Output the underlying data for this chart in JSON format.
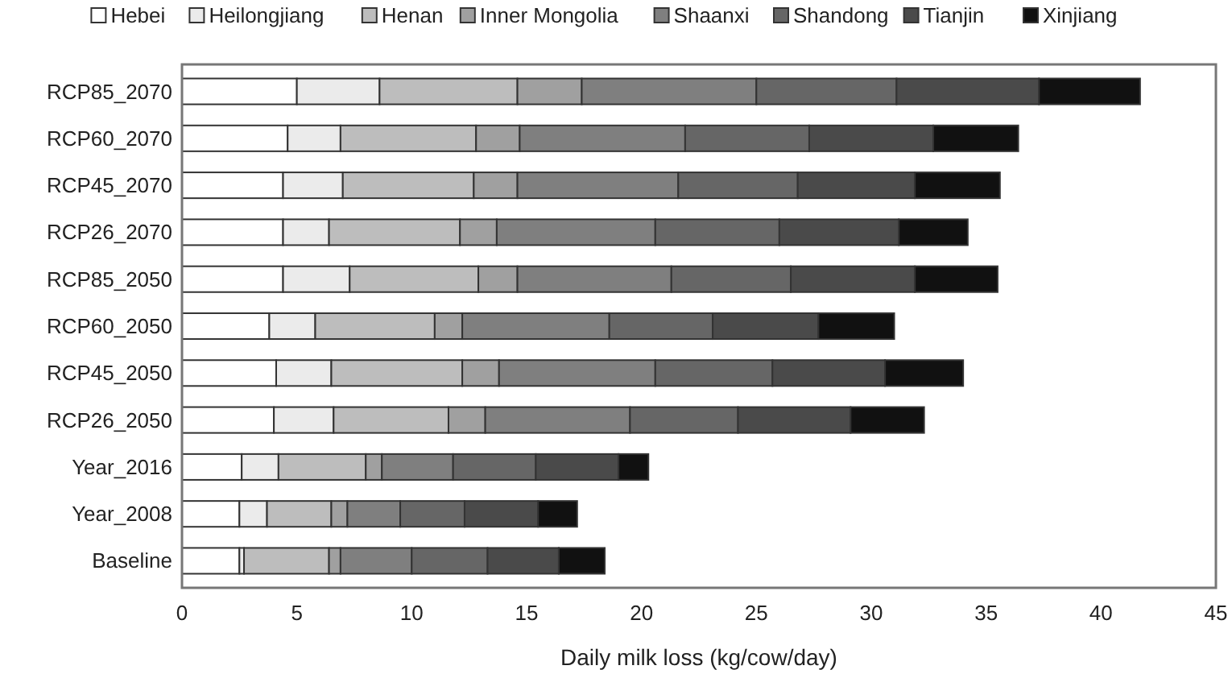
{
  "chart_data": {
    "type": "bar",
    "orientation": "horizontal",
    "stacked": true,
    "xlabel": "Daily milk loss (kg/cow/day)",
    "legend": "top",
    "grid": false,
    "categories": [
      "RCP85_2070",
      "RCP60_2070",
      "RCP45_2070",
      "RCP26_2070",
      "RCP85_2050",
      "RCP60_2050",
      "RCP45_2050",
      "RCP26_2050",
      "Year_2016",
      "Year_2008",
      "Baseline"
    ],
    "xlim": [
      0,
      45
    ],
    "xticks": [
      0,
      5,
      10,
      15,
      20,
      25,
      30,
      35,
      40,
      45
    ],
    "series": [
      {
        "name": "Hebei",
        "color": "#ffffff",
        "values": [
          5.0,
          4.6,
          4.4,
          4.4,
          4.4,
          3.8,
          4.1,
          4.0,
          2.6,
          2.5,
          2.5
        ]
      },
      {
        "name": "Heilongjiang",
        "color": "#ebebeb",
        "values": [
          3.6,
          2.3,
          2.6,
          2.0,
          2.9,
          2.0,
          2.4,
          2.6,
          1.6,
          1.2,
          0.2
        ]
      },
      {
        "name": "Henan",
        "color": "#bdbdbd",
        "values": [
          6.0,
          5.9,
          5.7,
          5.7,
          5.6,
          5.2,
          5.7,
          5.0,
          3.8,
          2.8,
          3.7
        ]
      },
      {
        "name": "Inner Mongolia",
        "color": "#a0a0a0",
        "values": [
          2.8,
          1.9,
          1.9,
          1.6,
          1.7,
          1.2,
          1.6,
          1.6,
          0.7,
          0.7,
          0.5
        ]
      },
      {
        "name": "Shaanxi",
        "color": "#7f7f7f",
        "values": [
          7.6,
          7.2,
          7.0,
          6.9,
          6.7,
          6.4,
          6.8,
          6.3,
          3.1,
          2.3,
          3.1
        ]
      },
      {
        "name": "Shandong",
        "color": "#666666",
        "values": [
          6.1,
          5.4,
          5.2,
          5.4,
          5.2,
          4.5,
          5.1,
          4.7,
          3.6,
          2.8,
          3.3
        ]
      },
      {
        "name": "Tianjin",
        "color": "#4a4a4a",
        "values": [
          6.2,
          5.4,
          5.1,
          5.2,
          5.4,
          4.6,
          4.9,
          4.9,
          3.6,
          3.2,
          3.1
        ]
      },
      {
        "name": "Xinjiang",
        "color": "#111111",
        "values": [
          4.4,
          3.7,
          3.7,
          3.0,
          3.6,
          3.3,
          3.4,
          3.2,
          1.3,
          1.7,
          2.0
        ]
      }
    ]
  }
}
